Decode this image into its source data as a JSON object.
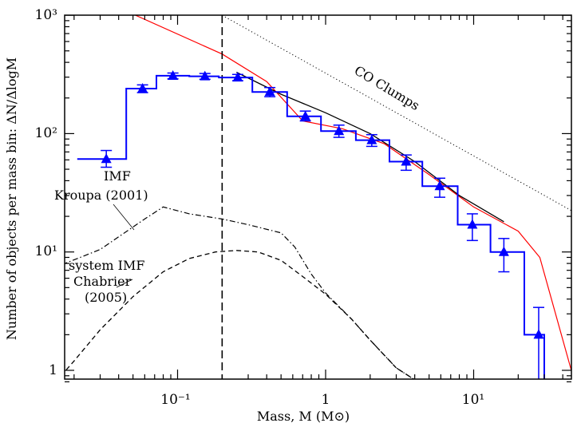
{
  "chart_data": {
    "type": "line",
    "xlabel": "Mass, M (M⊙)",
    "ylabel": "Number of objects per mass bin: ΔN/ΔlogM",
    "xscale": "log",
    "yscale": "log",
    "xlim": [
      0.014,
      48
    ],
    "ylim": [
      0.8,
      1000
    ],
    "grid": false,
    "x_tick_labels": [
      "10⁻¹",
      "1",
      "10¹"
    ],
    "y_tick_labels": [
      "1",
      "10¹",
      "10²",
      "10³"
    ],
    "annotations": [
      {
        "text": "CO Clumps"
      },
      {
        "text": "IMF"
      },
      {
        "text": "Kroupa (2001)"
      },
      {
        "text": "system IMF"
      },
      {
        "text": "Chabrier"
      },
      {
        "text": "(2005)"
      }
    ],
    "colors": {
      "histogram": "#0000ff",
      "red_fit": "#ff0000",
      "black_fit": "#000000",
      "markers": "#0000ff"
    },
    "histogram": {
      "edges": [
        0.021,
        0.045,
        0.072,
        0.12,
        0.19,
        0.32,
        0.55,
        0.93,
        1.6,
        2.7,
        4.5,
        7.8,
        13,
        22,
        30
      ],
      "counts": [
        61,
        240,
        308,
        305,
        298,
        225,
        140,
        105,
        88,
        58,
        36,
        17,
        10,
        2
      ]
    },
    "points": {
      "x": [
        0.033,
        0.058,
        0.093,
        0.153,
        0.255,
        0.42,
        0.73,
        1.23,
        2.05,
        3.5,
        5.9,
        9.8,
        16,
        27.5
      ],
      "y": [
        61,
        240,
        308,
        305,
        298,
        225,
        140,
        105,
        88,
        58,
        36,
        17,
        10,
        2
      ],
      "err_low": [
        52,
        222,
        290,
        288,
        280,
        205,
        128,
        93,
        78,
        49,
        29,
        12.5,
        6.8,
        0.7
      ],
      "err_high": [
        72,
        258,
        325,
        322,
        316,
        245,
        155,
        118,
        98,
        66,
        42,
        21,
        13,
        3.4
      ]
    },
    "vline": {
      "x": 0.2
    },
    "series": [
      {
        "x": [
          0.052,
          0.2,
          0.4,
          0.7,
          1.3,
          2.5,
          5,
          10,
          20,
          28,
          48
        ],
        "y": [
          1000,
          470,
          275,
          128,
          110,
          82,
          45,
          24,
          15,
          9,
          0.8
        ]
      },
      {
        "x": [
          0.25,
          0.5,
          1,
          2,
          4,
          8,
          16
        ],
        "y": [
          330,
          215,
          150,
          100,
          58,
          30,
          18
        ]
      },
      {
        "x": [
          0.2,
          50
        ],
        "y": [
          1000,
          21
        ]
      },
      {
        "x": [
          0.014,
          0.03,
          0.06,
          0.08,
          0.12,
          0.2,
          0.3,
          0.5,
          0.62,
          0.8,
          1,
          1.5,
          2,
          3,
          4.2
        ],
        "y": [
          7.2,
          10.5,
          19,
          24,
          21,
          19,
          17,
          14.5,
          11,
          6.5,
          4.5,
          2.7,
          1.8,
          1.05,
          0.8
        ]
      },
      {
        "x": [
          0.015,
          0.02,
          0.03,
          0.05,
          0.08,
          0.12,
          0.18,
          0.25,
          0.35,
          0.5,
          0.7,
          1,
          1.5,
          2,
          3,
          4.2
        ],
        "y": [
          0.8,
          1.2,
          2.2,
          4.2,
          6.8,
          8.8,
          10,
          10.3,
          10,
          8.5,
          6.2,
          4.4,
          2.7,
          1.8,
          1.05,
          0.8
        ]
      }
    ]
  }
}
